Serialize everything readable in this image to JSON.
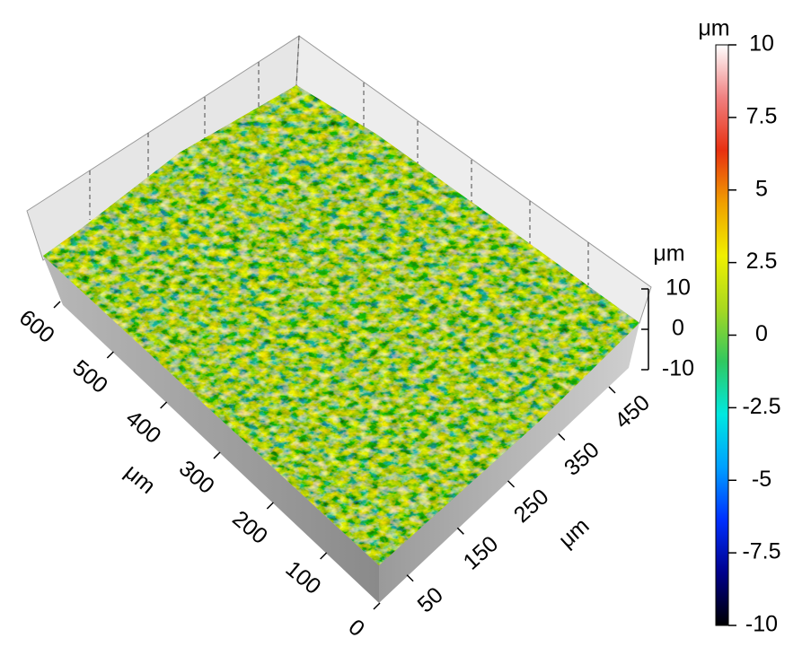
{
  "chart_data": {
    "type": "surface3d",
    "x_label": "μm",
    "y_label": "μm",
    "z_label": "μm",
    "xlim": [
      0,
      600
    ],
    "xticks": [
      0,
      100,
      200,
      300,
      400,
      500,
      600
    ],
    "ylim": [
      0,
      450
    ],
    "yticks": [
      50,
      150,
      250,
      350,
      450
    ],
    "zlim": [
      -10,
      10
    ],
    "zticks": [
      -10,
      0,
      10
    ],
    "colorbar": {
      "label": "μm",
      "lim": [
        -10,
        10
      ],
      "ticks": [
        -10,
        -7.5,
        -5,
        -2.5,
        0,
        2.5,
        5,
        7.5,
        10
      ],
      "colors": [
        "#000000",
        "#00008c",
        "#0030ff",
        "#00a0ff",
        "#00e8e0",
        "#30c860",
        "#a8d820",
        "#f0f000",
        "#f0a000",
        "#e83010",
        "#f08080",
        "#ffffff"
      ]
    }
  }
}
